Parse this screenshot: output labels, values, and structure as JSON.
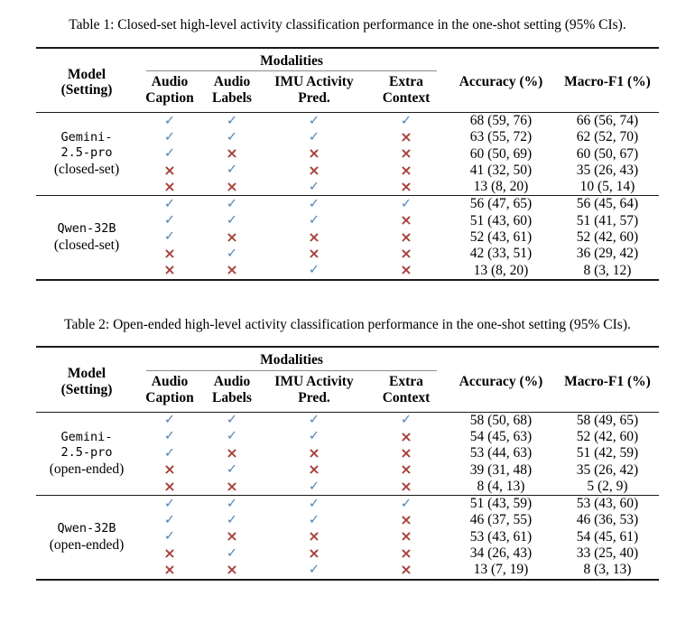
{
  "colors": {
    "check": "#4d84c2",
    "cross": "#b23a33",
    "rule": "#1a1a1a"
  },
  "icons": {
    "check_glyph": "✓",
    "cross_glyph": "×"
  },
  "tables": [
    {
      "caption": "Table 1: Closed-set high-level activity classification performance in the one-shot setting (95% CIs).",
      "header": {
        "model_line1": "Model",
        "model_line2": "(Setting)",
        "modalities": "Modalities",
        "subheaders": [
          {
            "line1": "Audio",
            "line2": "Caption"
          },
          {
            "line1": "Audio",
            "line2": "Labels"
          },
          {
            "line1": "IMU Activity",
            "line2": "Pred."
          },
          {
            "line1": "Extra",
            "line2": "Context"
          }
        ],
        "accuracy": "Accuracy (%)",
        "macro_f1": "Macro-F1 (%)"
      },
      "blocks": [
        {
          "model_lines": [
            "Gemini-",
            "2.5-pro"
          ],
          "setting": "(closed-set)",
          "rows": [
            {
              "marks": [
                true,
                true,
                true,
                true
              ],
              "accuracy": "68 (59, 76)",
              "macro_f1": "66 (56, 74)"
            },
            {
              "marks": [
                true,
                true,
                true,
                false
              ],
              "accuracy": "63 (55, 72)",
              "macro_f1": "62 (52, 70)"
            },
            {
              "marks": [
                true,
                false,
                false,
                false
              ],
              "accuracy": "60 (50, 69)",
              "macro_f1": "60 (50, 67)"
            },
            {
              "marks": [
                false,
                true,
                false,
                false
              ],
              "accuracy": "41 (32, 50)",
              "macro_f1": "35 (26, 43)"
            },
            {
              "marks": [
                false,
                false,
                true,
                false
              ],
              "accuracy": "13 (8, 20)",
              "macro_f1": "10 (5, 14)"
            }
          ]
        },
        {
          "model_lines": [
            "Qwen-32B"
          ],
          "setting": "(closed-set)",
          "rows": [
            {
              "marks": [
                true,
                true,
                true,
                true
              ],
              "accuracy": "56 (47, 65)",
              "macro_f1": "56 (45, 64)"
            },
            {
              "marks": [
                true,
                true,
                true,
                false
              ],
              "accuracy": "51 (43, 60)",
              "macro_f1": "51 (41, 57)"
            },
            {
              "marks": [
                true,
                false,
                false,
                false
              ],
              "accuracy": "52 (43, 61)",
              "macro_f1": "52 (42, 60)"
            },
            {
              "marks": [
                false,
                true,
                false,
                false
              ],
              "accuracy": "42 (33, 51)",
              "macro_f1": "36 (29, 42)"
            },
            {
              "marks": [
                false,
                false,
                true,
                false
              ],
              "accuracy": "13 (8, 20)",
              "macro_f1": "8 (3, 12)"
            }
          ]
        }
      ]
    },
    {
      "caption": "Table 2: Open-ended high-level activity classification performance in the one-shot setting (95% CIs).",
      "header": {
        "model_line1": "Model",
        "model_line2": "(Setting)",
        "modalities": "Modalities",
        "subheaders": [
          {
            "line1": "Audio",
            "line2": "Caption"
          },
          {
            "line1": "Audio",
            "line2": "Labels"
          },
          {
            "line1": "IMU Activity",
            "line2": "Pred."
          },
          {
            "line1": "Extra",
            "line2": "Context"
          }
        ],
        "accuracy": "Accuracy (%)",
        "macro_f1": "Macro-F1 (%)"
      },
      "blocks": [
        {
          "model_lines": [
            "Gemini-",
            "2.5-pro"
          ],
          "setting": "(open-ended)",
          "rows": [
            {
              "marks": [
                true,
                true,
                true,
                true
              ],
              "accuracy": "58 (50, 68)",
              "macro_f1": "58 (49, 65)"
            },
            {
              "marks": [
                true,
                true,
                true,
                false
              ],
              "accuracy": "54 (45, 63)",
              "macro_f1": "52 (42, 60)"
            },
            {
              "marks": [
                true,
                false,
                false,
                false
              ],
              "accuracy": "53 (44, 63)",
              "macro_f1": "51 (42, 59)"
            },
            {
              "marks": [
                false,
                true,
                false,
                false
              ],
              "accuracy": "39 (31, 48)",
              "macro_f1": "35 (26, 42)"
            },
            {
              "marks": [
                false,
                false,
                true,
                false
              ],
              "accuracy": "8 (4, 13)",
              "macro_f1": "5 (2, 9)"
            }
          ]
        },
        {
          "model_lines": [
            "Qwen-32B"
          ],
          "setting": "(open-ended)",
          "rows": [
            {
              "marks": [
                true,
                true,
                true,
                true
              ],
              "accuracy": "51 (43, 59)",
              "macro_f1": "53 (43, 60)"
            },
            {
              "marks": [
                true,
                true,
                true,
                false
              ],
              "accuracy": "46 (37, 55)",
              "macro_f1": "46 (36, 53)"
            },
            {
              "marks": [
                true,
                false,
                false,
                false
              ],
              "accuracy": "53 (43, 61)",
              "macro_f1": "54 (45, 61)"
            },
            {
              "marks": [
                false,
                true,
                false,
                false
              ],
              "accuracy": "34 (26, 43)",
              "macro_f1": "33 (25, 40)"
            },
            {
              "marks": [
                false,
                false,
                true,
                false
              ],
              "accuracy": "13 (7, 19)",
              "macro_f1": "8 (3, 13)"
            }
          ]
        }
      ]
    }
  ]
}
